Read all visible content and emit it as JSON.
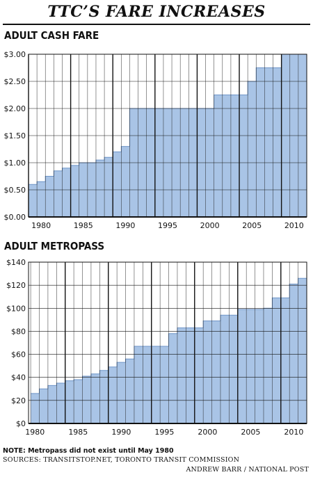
{
  "header": {
    "title": "TTC’S FARE INCREASES"
  },
  "colors": {
    "bar": "#a9c4e6",
    "bar_edge": "#6f95c8",
    "grid": "#111111"
  },
  "chart_data": [
    {
      "type": "bar",
      "title": "ADULT CASH FARE",
      "x": [
        1979,
        1980,
        1981,
        1982,
        1983,
        1984,
        1985,
        1986,
        1987,
        1988,
        1989,
        1990,
        1991,
        1992,
        1993,
        1994,
        1995,
        1996,
        1997,
        1998,
        1999,
        2000,
        2001,
        2002,
        2003,
        2004,
        2005,
        2006,
        2007,
        2008,
        2009,
        2010,
        2011
      ],
      "values": [
        0.6,
        0.65,
        0.75,
        0.85,
        0.9,
        0.95,
        1.0,
        1.0,
        1.05,
        1.1,
        1.2,
        1.3,
        2.0,
        2.0,
        2.0,
        2.0,
        2.0,
        2.0,
        2.0,
        2.0,
        2.0,
        2.0,
        2.25,
        2.25,
        2.25,
        2.25,
        2.5,
        2.75,
        2.75,
        2.75,
        3.0,
        3.0,
        3.0
      ],
      "ylim": [
        0,
        3
      ],
      "yticks": [
        "$0.00",
        "$0.50",
        "$1.00",
        "$1.50",
        "$2.00",
        "$2.50",
        "$3.00"
      ],
      "ytick_values": [
        0,
        0.5,
        1,
        1.5,
        2,
        2.5,
        3
      ],
      "xticks": [
        "1980",
        "1985",
        "1990",
        "1995",
        "2000",
        "2005",
        "2010"
      ]
    },
    {
      "type": "bar",
      "title": "ADULT METROPASS",
      "x": [
        1980,
        1981,
        1982,
        1983,
        1984,
        1985,
        1986,
        1987,
        1988,
        1989,
        1990,
        1991,
        1992,
        1993,
        1994,
        1995,
        1996,
        1997,
        1998,
        1999,
        2000,
        2001,
        2002,
        2003,
        2004,
        2005,
        2006,
        2007,
        2008,
        2009,
        2010,
        2011
      ],
      "values": [
        26,
        30,
        33,
        35,
        37,
        38,
        41,
        43,
        46,
        49,
        53,
        56,
        67,
        67,
        67,
        67,
        78,
        83,
        83,
        83,
        89,
        89,
        94,
        94,
        99,
        99,
        99,
        100,
        109,
        109,
        121,
        126
      ],
      "ylim": [
        0,
        140
      ],
      "yticks": [
        "$0",
        "$20",
        "$40",
        "$60",
        "$80",
        "$100",
        "$120",
        "$140"
      ],
      "ytick_values": [
        0,
        20,
        40,
        60,
        80,
        100,
        120,
        140
      ],
      "xticks": [
        "1980",
        "1985",
        "1990",
        "1995",
        "2000",
        "2005",
        "2010"
      ]
    }
  ],
  "footer": {
    "note": "NOTE: Metropass did not exist until May 1980",
    "sources": "SOURCES: TRANSITSTOP.NET, TORONTO TRANSIT COMMISSION",
    "credit": "ANDREW BARR / NATIONAL POST"
  }
}
